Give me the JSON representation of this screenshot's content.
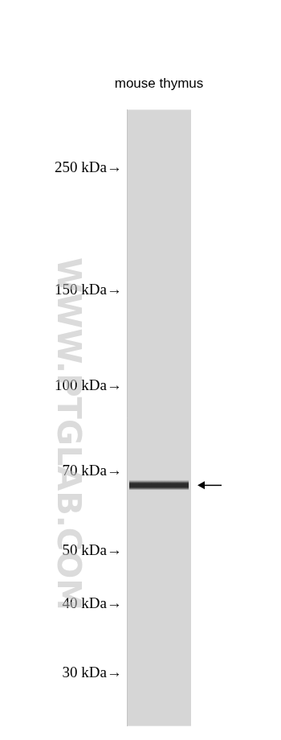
{
  "chart_data": {
    "type": "blot",
    "categories": [
      "mouse thymus"
    ],
    "values": [
      66
    ],
    "marker": "band",
    "color": "#2b2b2b",
    "log": "y",
    "ylim": [
      24,
      320
    ],
    "yticks": [
      {
        "value": 250,
        "label": "250 kDa→"
      },
      {
        "value": 150,
        "label": "150 kDa→"
      },
      {
        "value": 100,
        "label": "100 kDa→"
      },
      {
        "value": 70,
        "label": "70 kDa→"
      },
      {
        "value": 50,
        "label": "50 kDa→"
      },
      {
        "value": 40,
        "label": "40 kDa→"
      },
      {
        "value": 30,
        "label": "30 kDa→"
      }
    ],
    "grid": false,
    "annotations": [
      {
        "text": "WWW.PTGLAB.COM"
      }
    ]
  }
}
